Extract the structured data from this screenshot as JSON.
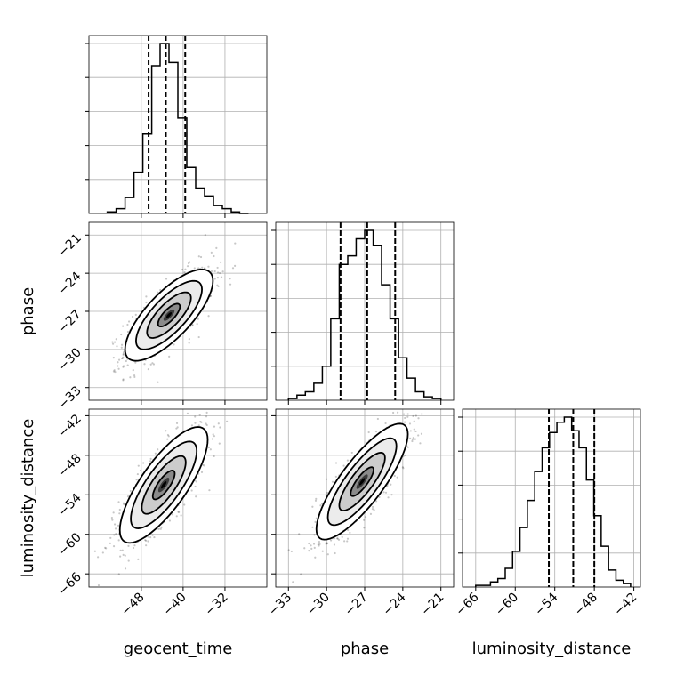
{
  "chart_data": {
    "type": "corner",
    "parameters": [
      "geocent_time",
      "phase",
      "luminosity_distance"
    ],
    "axes": {
      "geocent_time": {
        "lim": [
          -58,
          -24
        ],
        "ticks": [
          -48,
          -40,
          -32
        ]
      },
      "phase": {
        "lim": [
          -34,
          -20
        ],
        "ticks": [
          -33,
          -30,
          -27,
          -24,
          -21
        ]
      },
      "luminosity_distance": {
        "lim": [
          -68,
          -41
        ],
        "ticks": [
          -66,
          -60,
          -54,
          -48,
          -42
        ]
      }
    },
    "grid": true,
    "marginals": [
      {
        "parameter": "geocent_time",
        "quantile_lines": [
          -46.6,
          -43.3,
          -39.6
        ],
        "bin_edges": [
          -54.5,
          -52.8,
          -51.1,
          -49.4,
          -47.7,
          -46.0,
          -44.4,
          -42.7,
          -41.0,
          -39.3,
          -37.6,
          -35.9,
          -34.2,
          -32.5,
          -30.8,
          -29.2,
          -27.5
        ],
        "counts": [
          1,
          3,
          10,
          26,
          50,
          93,
          107,
          95,
          60,
          29,
          16,
          11,
          5,
          3,
          1,
          0
        ]
      },
      {
        "parameter": "phase",
        "quantile_lines": [
          -28.9,
          -26.8,
          -24.6
        ],
        "bin_edges": [
          -33.0,
          -32.33,
          -31.67,
          -31.0,
          -30.33,
          -29.67,
          -29.0,
          -28.33,
          -27.67,
          -27.0,
          -26.33,
          -25.67,
          -25.0,
          -24.33,
          -23.67,
          -23.0,
          -22.33,
          -21.67,
          -21.0
        ],
        "counts": [
          1,
          3,
          5,
          10,
          20,
          48,
          80,
          85,
          95,
          100,
          91,
          68,
          48,
          25,
          13,
          5,
          2,
          1
        ]
      },
      {
        "parameter": "luminosity_distance",
        "quantile_lines": [
          -54.9,
          -51.2,
          -48.0
        ],
        "bin_edges": [
          -66.0,
          -64.88,
          -63.76,
          -62.64,
          -61.52,
          -60.4,
          -59.28,
          -58.16,
          -57.04,
          -55.92,
          -54.8,
          -53.68,
          -52.56,
          -51.44,
          -50.32,
          -49.2,
          -48.08,
          -46.96,
          -45.84,
          -44.72,
          -43.6,
          -42.5
        ],
        "counts": [
          1,
          1,
          3,
          5,
          11,
          21,
          35,
          51,
          68,
          82,
          91,
          97,
          100,
          92,
          82,
          63,
          42,
          24,
          10,
          4,
          2
        ]
      }
    ],
    "joints": [
      {
        "x": "geocent_time",
        "y": "phase",
        "center": [
          -42.7,
          -27.3
        ],
        "sigma": [
          4.2,
          1.8
        ],
        "rho": 0.75,
        "contour_levels_sigma": [
          0.5,
          1.0,
          1.5,
          2.0
        ]
      },
      {
        "x": "geocent_time",
        "y": "luminosity_distance",
        "center": [
          -43.7,
          -52.5
        ],
        "sigma": [
          4.2,
          4.4
        ],
        "rho": 0.78,
        "contour_levels_sigma": [
          0.5,
          1.0,
          1.5,
          2.0
        ]
      },
      {
        "x": "phase",
        "y": "luminosity_distance",
        "center": [
          -27.2,
          -52.0
        ],
        "sigma": [
          1.8,
          4.4
        ],
        "rho": 0.82,
        "contour_levels_sigma": [
          0.5,
          1.0,
          1.5,
          2.0
        ]
      }
    ]
  }
}
